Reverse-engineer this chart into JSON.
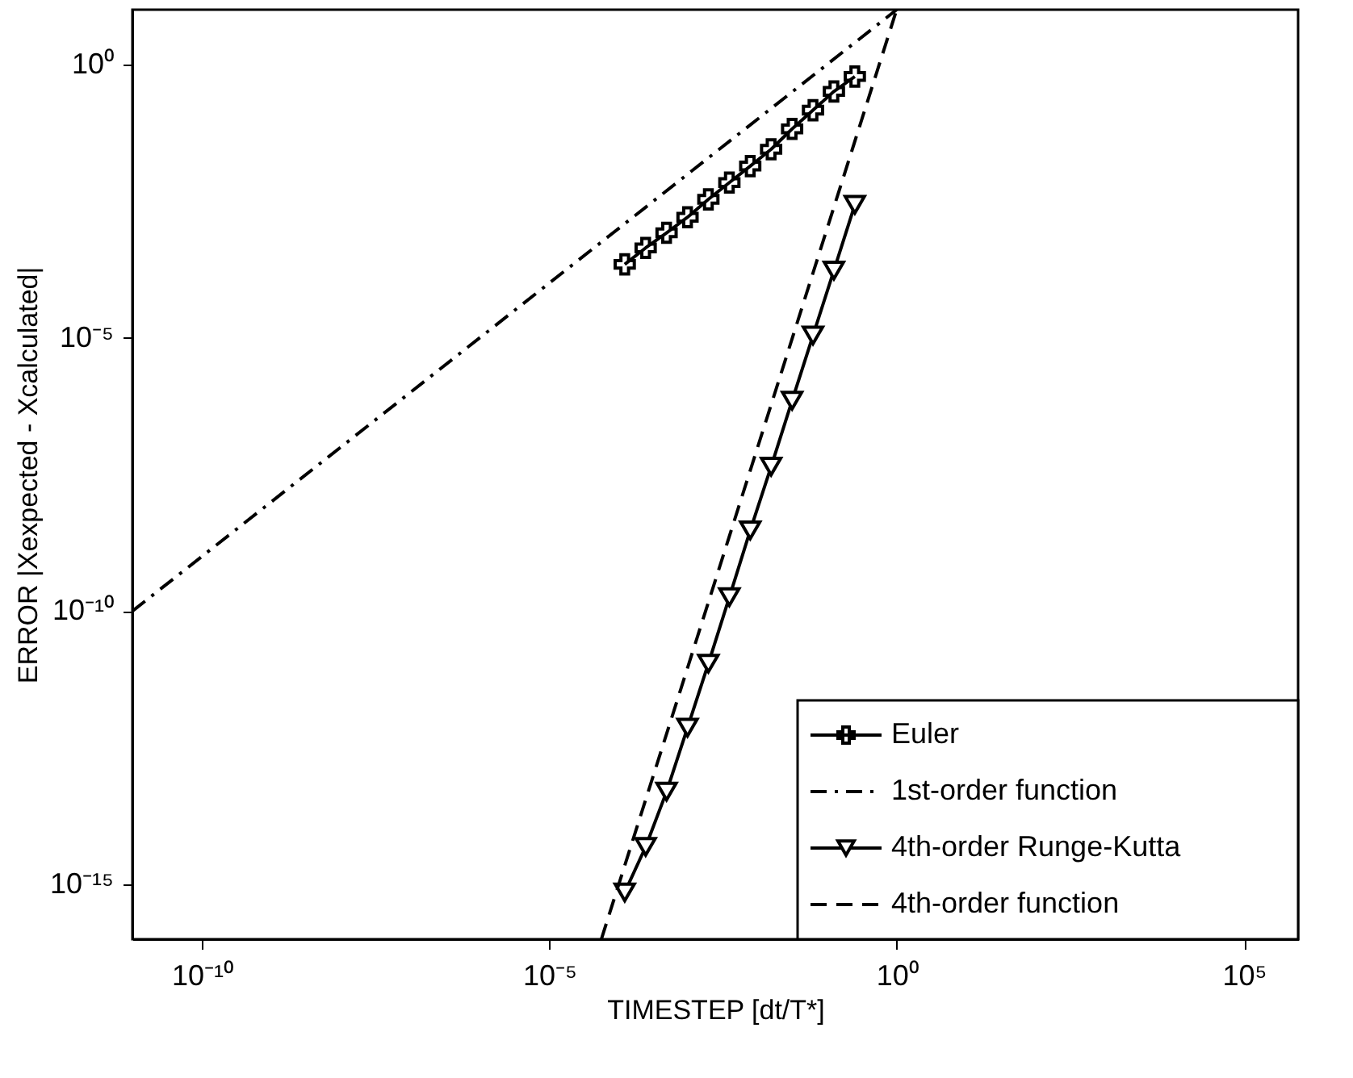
{
  "chart_data": {
    "type": "line",
    "xlabel": "TIMESTEP [dt/T*]",
    "ylabel": "ERROR |Xexpected - Xcalculated|",
    "log": "xy",
    "grid": false,
    "legend": "bottom right",
    "xlim": [
      1e-11,
      600000.0
    ],
    "ylim": [
      1e-16,
      10
    ],
    "xticks": [
      {
        "value": 1e-10,
        "label": "10⁻¹⁰"
      },
      {
        "value": 1e-05,
        "label": "10⁻⁵"
      },
      {
        "value": 1,
        "label": "10⁰"
      },
      {
        "value": 100000.0,
        "label": "10⁵"
      }
    ],
    "yticks": [
      {
        "value": 1,
        "label": "10⁰"
      },
      {
        "value": 1e-05,
        "label": "10⁻⁵"
      },
      {
        "value": 1e-10,
        "label": "10⁻¹⁰"
      },
      {
        "value": 1e-15,
        "label": "10⁻¹⁵"
      }
    ],
    "series": [
      {
        "name": "Euler",
        "color": "#000000",
        "marker": "cross",
        "line_style": "solid",
        "x": [
          0.000122,
          0.000244,
          0.000488,
          0.000977,
          0.00195,
          0.00391,
          0.00781,
          0.0156,
          0.0313,
          0.0625,
          0.125,
          0.25
        ],
        "values": [
          0.00022,
          0.00044,
          0.00083,
          0.0016,
          0.0034,
          0.0069,
          0.0138,
          0.028,
          0.066,
          0.145,
          0.32,
          0.6
        ]
      },
      {
        "name": "1st-order function",
        "color": "#000000",
        "marker": "none",
        "line_style": "dashdot",
        "x": [
          1e-11,
          1
        ],
        "values": [
          1e-10,
          10
        ]
      },
      {
        "name": "4th-order Runge-Kutta",
        "color": "#000000",
        "marker": "triangle",
        "line_style": "solid",
        "x": [
          0.25,
          0.125,
          0.0625,
          0.0313,
          0.0156,
          0.00781,
          0.00391,
          0.00195,
          0.000977,
          0.000488,
          0.000244,
          0.000122
        ],
        "values": [
          0.0027,
          0.00017,
          1.1e-05,
          7.1e-07,
          4.4e-08,
          3e-09,
          1.8e-10,
          1.1e-11,
          7.4e-13,
          5e-14,
          4.9e-15,
          7.2e-16
        ]
      },
      {
        "name": "4th-order function",
        "color": "#000000",
        "marker": "none",
        "line_style": "dashed",
        "x": [
          5.62e-05,
          1
        ],
        "values": [
          1e-16,
          10
        ]
      }
    ]
  }
}
